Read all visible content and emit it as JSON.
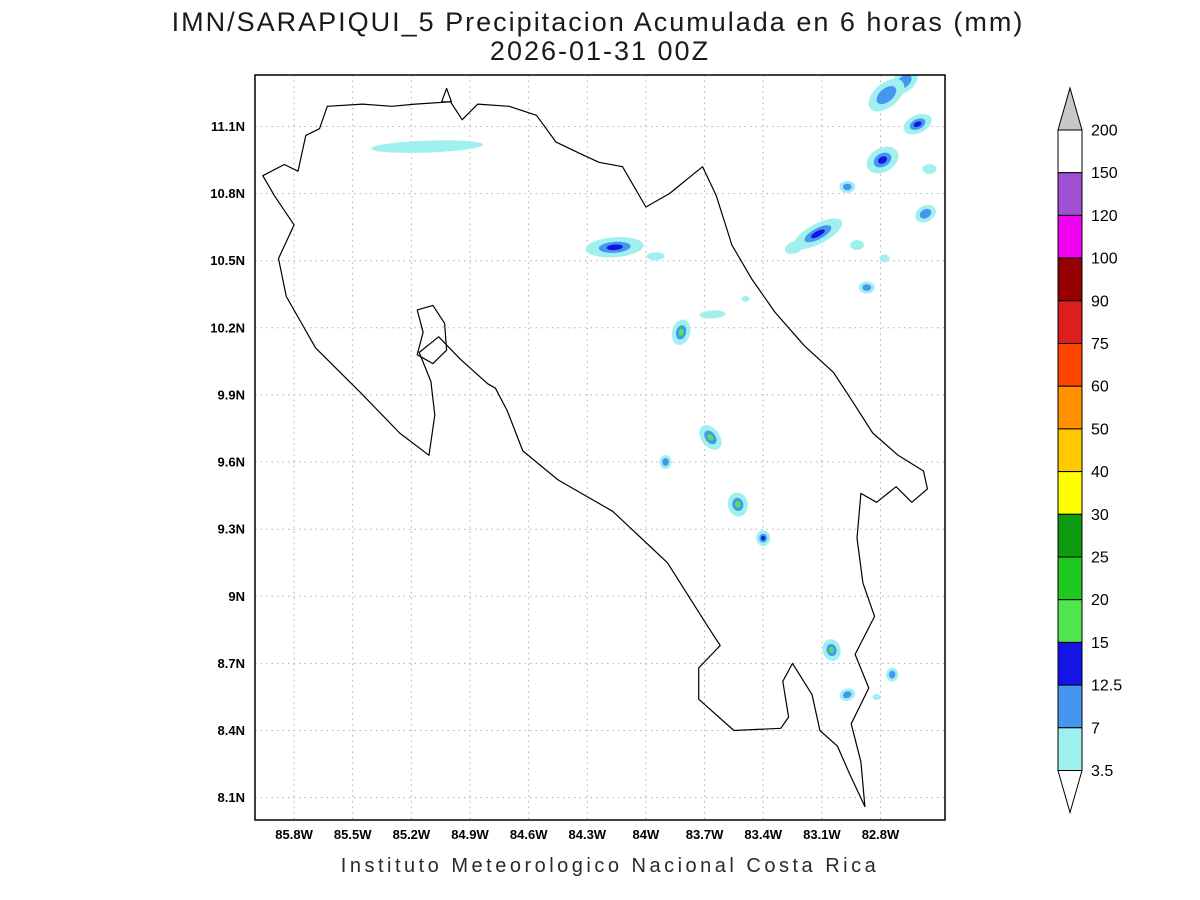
{
  "header": {
    "title_line1": "IMN/SARAPIQUI_5 Precipitacion Acumulada en 6 horas (mm)",
    "title_line2": "2026-01-31 00Z"
  },
  "footer": {
    "caption": "Instituto Meteorologico Nacional Costa Rica"
  },
  "map": {
    "lat_ticks": [
      "11.1N",
      "10.8N",
      "10.5N",
      "10.2N",
      "9.9N",
      "9.6N",
      "9.3N",
      "9N",
      "8.7N",
      "8.4N",
      "8.1N"
    ],
    "lat_values": [
      11.1,
      10.8,
      10.5,
      10.2,
      9.9,
      9.6,
      9.3,
      9.0,
      8.7,
      8.4,
      8.1
    ],
    "lon_ticks": [
      "85.8W",
      "85.5W",
      "85.2W",
      "84.9W",
      "84.6W",
      "84.3W",
      "84W",
      "83.7W",
      "83.4W",
      "83.1W",
      "82.8W"
    ],
    "lon_values": [
      85.8,
      85.5,
      85.2,
      84.9,
      84.6,
      84.3,
      84.0,
      83.7,
      83.4,
      83.1,
      82.8
    ]
  },
  "chart_data": {
    "type": "filled-contour-map",
    "region": "Costa Rica",
    "variable": "Precipitacion Acumulada en 6 horas (mm)",
    "model": "IMN/SARAPIQUI_5",
    "valid_time": "2026-01-31 00Z",
    "axes": {
      "lon_range": [
        86.0,
        82.47
      ],
      "lat_range": [
        11.33,
        8.0
      ]
    },
    "levels": [
      3.5,
      7,
      12.5,
      15,
      20,
      25,
      30,
      40,
      50,
      60,
      75,
      90,
      100,
      120,
      150,
      200
    ],
    "level_colors": {
      "3.5": "#a0f0f0",
      "7": "#4696f0",
      "12.5": "#1414e6",
      "15": "#50e650",
      "20": "#1fc81f",
      "25": "#0f9b0f",
      "30": "#ffff00",
      "40": "#ffc800",
      "50": "#ff9100",
      "60": "#ff4600",
      "75": "#dc1e1e",
      "90": "#960000",
      "100": "#f000f0",
      "120": "#a050d2",
      "150": "#ffffff"
    },
    "colorbar": {
      "above_color": "#c8c8c8",
      "below_color": "#ffffff",
      "labels": [
        "200",
        "150",
        "120",
        "100",
        "90",
        "75",
        "60",
        "50",
        "40",
        "30",
        "25",
        "20",
        "15",
        "12.5",
        "7",
        "3.5"
      ],
      "segments": [
        {
          "lower": 150,
          "upper": 200,
          "color": "#ffffff"
        },
        {
          "lower": 120,
          "upper": 150,
          "color": "#a050d2"
        },
        {
          "lower": 100,
          "upper": 120,
          "color": "#f000f0"
        },
        {
          "lower": 90,
          "upper": 100,
          "color": "#960000"
        },
        {
          "lower": 75,
          "upper": 90,
          "color": "#dc1e1e"
        },
        {
          "lower": 60,
          "upper": 75,
          "color": "#ff4600"
        },
        {
          "lower": 50,
          "upper": 60,
          "color": "#ff9100"
        },
        {
          "lower": 40,
          "upper": 50,
          "color": "#ffc800"
        },
        {
          "lower": 30,
          "upper": 40,
          "color": "#ffff00"
        },
        {
          "lower": 25,
          "upper": 30,
          "color": "#0f9b0f"
        },
        {
          "lower": 20,
          "upper": 25,
          "color": "#1fc81f"
        },
        {
          "lower": 15,
          "upper": 20,
          "color": "#50e650"
        },
        {
          "lower": 12.5,
          "upper": 15,
          "color": "#1414e6"
        },
        {
          "lower": 7,
          "upper": 12.5,
          "color": "#4696f0"
        },
        {
          "lower": 3.5,
          "upper": 7,
          "color": "#a0f0f0"
        }
      ]
    },
    "cells": [
      {
        "lon": 85.12,
        "lat": 11.01,
        "rx": 56,
        "ry": 6,
        "rot": -2,
        "levels": [
          3.5
        ]
      },
      {
        "lon": 82.68,
        "lat": 11.3,
        "rx": 16,
        "ry": 10,
        "rot": -40,
        "levels": [
          3.5,
          7
        ]
      },
      {
        "lon": 82.77,
        "lat": 11.24,
        "rx": 21,
        "ry": 12,
        "rot": -40,
        "levels": [
          3.5,
          7
        ]
      },
      {
        "lon": 82.61,
        "lat": 11.11,
        "rx": 15,
        "ry": 9,
        "rot": -25,
        "levels": [
          3.5,
          7,
          12.5
        ]
      },
      {
        "lon": 82.79,
        "lat": 10.95,
        "rx": 17,
        "ry": 12,
        "rot": -30,
        "levels": [
          3.5,
          7,
          12.5
        ]
      },
      {
        "lon": 82.55,
        "lat": 10.91,
        "rx": 7,
        "ry": 5,
        "rot": 0,
        "levels": [
          3.5
        ]
      },
      {
        "lon": 82.97,
        "lat": 10.83,
        "rx": 8,
        "ry": 6,
        "rot": 0,
        "levels": [
          3.5,
          7
        ]
      },
      {
        "lon": 82.57,
        "lat": 10.71,
        "rx": 11,
        "ry": 8,
        "rot": -30,
        "levels": [
          3.5,
          7
        ]
      },
      {
        "lon": 83.12,
        "lat": 10.62,
        "rx": 27,
        "ry": 10,
        "rot": -28,
        "levels": [
          3.5,
          7,
          12.5
        ]
      },
      {
        "lon": 83.24,
        "lat": 10.56,
        "rx": 10,
        "ry": 6,
        "rot": -20,
        "levels": [
          3.5
        ]
      },
      {
        "lon": 82.92,
        "lat": 10.57,
        "rx": 7,
        "ry": 5,
        "rot": 0,
        "levels": [
          3.5
        ]
      },
      {
        "lon": 82.78,
        "lat": 10.51,
        "rx": 5,
        "ry": 4,
        "rot": 0,
        "levels": [
          3.5
        ]
      },
      {
        "lon": 82.87,
        "lat": 10.38,
        "rx": 8,
        "ry": 6,
        "rot": 0,
        "levels": [
          3.5,
          7
        ]
      },
      {
        "lon": 84.16,
        "lat": 10.56,
        "rx": 29,
        "ry": 10,
        "rot": -4,
        "levels": [
          3.5,
          7,
          12.5
        ]
      },
      {
        "lon": 83.95,
        "lat": 10.52,
        "rx": 9,
        "ry": 4,
        "rot": 0,
        "levels": [
          3.5
        ]
      },
      {
        "lon": 83.66,
        "lat": 10.26,
        "rx": 13,
        "ry": 4,
        "rot": -3,
        "levels": [
          3.5
        ]
      },
      {
        "lon": 83.82,
        "lat": 10.18,
        "rx": 9,
        "ry": 13,
        "rot": 15,
        "levels": [
          3.5,
          7,
          15
        ]
      },
      {
        "lon": 83.49,
        "lat": 10.33,
        "rx": 4,
        "ry": 3,
        "rot": 0,
        "levels": [
          3.5
        ]
      },
      {
        "lon": 83.67,
        "lat": 9.71,
        "rx": 9,
        "ry": 14,
        "rot": -38,
        "levels": [
          3.5,
          7,
          15
        ]
      },
      {
        "lon": 83.9,
        "lat": 9.6,
        "rx": 6,
        "ry": 7,
        "rot": 0,
        "levels": [
          3.5,
          7
        ]
      },
      {
        "lon": 83.53,
        "lat": 9.41,
        "rx": 10,
        "ry": 12,
        "rot": -10,
        "levels": [
          3.5,
          7,
          15
        ]
      },
      {
        "lon": 83.4,
        "lat": 9.26,
        "rx": 7,
        "ry": 8,
        "rot": 0,
        "levels": [
          3.5,
          7,
          12.5
        ]
      },
      {
        "lon": 83.05,
        "lat": 8.76,
        "rx": 9,
        "ry": 11,
        "rot": -15,
        "levels": [
          3.5,
          7,
          15
        ]
      },
      {
        "lon": 82.74,
        "lat": 8.65,
        "rx": 6,
        "ry": 7,
        "rot": 0,
        "levels": [
          3.5,
          7
        ]
      },
      {
        "lon": 82.97,
        "lat": 8.56,
        "rx": 8,
        "ry": 6,
        "rot": -20,
        "levels": [
          3.5,
          7
        ]
      },
      {
        "lon": 82.82,
        "lat": 8.55,
        "rx": 4,
        "ry": 3,
        "rot": 0,
        "levels": [
          3.5
        ]
      }
    ],
    "coastline": [
      [
        85.74,
        11.06
      ],
      [
        85.67,
        11.09
      ],
      [
        85.63,
        11.19
      ],
      [
        85.45,
        11.2
      ],
      [
        85.3,
        11.19
      ],
      [
        85.18,
        11.2
      ],
      [
        85.0,
        11.21
      ],
      [
        84.94,
        11.13
      ],
      [
        84.86,
        11.2
      ],
      [
        84.7,
        11.19
      ],
      [
        84.56,
        11.15
      ],
      [
        84.46,
        11.03
      ],
      [
        84.34,
        10.98
      ],
      [
        84.24,
        10.94
      ],
      [
        84.12,
        10.92
      ],
      [
        84.0,
        10.74
      ],
      [
        83.88,
        10.8
      ],
      [
        83.71,
        10.92
      ],
      [
        83.64,
        10.79
      ],
      [
        83.56,
        10.57
      ],
      [
        83.46,
        10.42
      ],
      [
        83.34,
        10.27
      ],
      [
        83.19,
        10.12
      ],
      [
        83.04,
        10.0
      ],
      [
        82.95,
        9.88
      ],
      [
        82.84,
        9.73
      ],
      [
        82.71,
        9.63
      ],
      [
        82.58,
        9.56
      ],
      [
        82.56,
        9.48
      ],
      [
        82.64,
        9.42
      ],
      [
        82.72,
        9.49
      ],
      [
        82.82,
        9.42
      ],
      [
        82.9,
        9.46
      ],
      [
        82.92,
        9.26
      ],
      [
        82.89,
        9.06
      ],
      [
        82.83,
        8.91
      ],
      [
        82.93,
        8.74
      ],
      [
        82.86,
        8.59
      ],
      [
        82.95,
        8.43
      ],
      [
        82.9,
        8.26
      ],
      [
        82.88,
        8.06
      ],
      [
        82.96,
        8.21
      ],
      [
        83.02,
        8.33
      ],
      [
        83.11,
        8.4
      ],
      [
        83.15,
        8.56
      ],
      [
        83.25,
        8.7
      ],
      [
        83.3,
        8.62
      ],
      [
        83.27,
        8.46
      ],
      [
        83.31,
        8.41
      ],
      [
        83.55,
        8.4
      ],
      [
        83.73,
        8.54
      ],
      [
        83.73,
        8.68
      ],
      [
        83.62,
        8.78
      ],
      [
        83.68,
        8.86
      ],
      [
        83.89,
        9.15
      ],
      [
        84.17,
        9.38
      ],
      [
        84.45,
        9.52
      ],
      [
        84.63,
        9.65
      ],
      [
        84.71,
        9.83
      ],
      [
        84.77,
        9.93
      ],
      [
        84.81,
        9.95
      ],
      [
        84.95,
        10.06
      ],
      [
        85.06,
        10.16
      ],
      [
        85.16,
        10.09
      ],
      [
        85.1,
        9.96
      ],
      [
        85.08,
        9.81
      ],
      [
        85.11,
        9.63
      ],
      [
        85.26,
        9.73
      ],
      [
        85.46,
        9.91
      ],
      [
        85.69,
        10.11
      ],
      [
        85.84,
        10.34
      ],
      [
        85.88,
        10.51
      ],
      [
        85.8,
        10.66
      ],
      [
        85.9,
        10.79
      ],
      [
        85.96,
        10.88
      ],
      [
        85.85,
        10.93
      ],
      [
        85.78,
        10.9
      ]
    ],
    "islands": [
      {
        "name": "isla-chira-outline",
        "points": [
          [
            85.17,
            10.28
          ],
          [
            85.09,
            10.3
          ],
          [
            85.03,
            10.22
          ],
          [
            85.02,
            10.1
          ],
          [
            85.09,
            10.04
          ],
          [
            85.17,
            10.08
          ],
          [
            85.14,
            10.18
          ]
        ]
      },
      {
        "name": "island-triangle-outline",
        "points": [
          [
            85.045,
            11.21
          ],
          [
            84.995,
            11.21
          ],
          [
            85.02,
            11.27
          ]
        ]
      }
    ]
  }
}
